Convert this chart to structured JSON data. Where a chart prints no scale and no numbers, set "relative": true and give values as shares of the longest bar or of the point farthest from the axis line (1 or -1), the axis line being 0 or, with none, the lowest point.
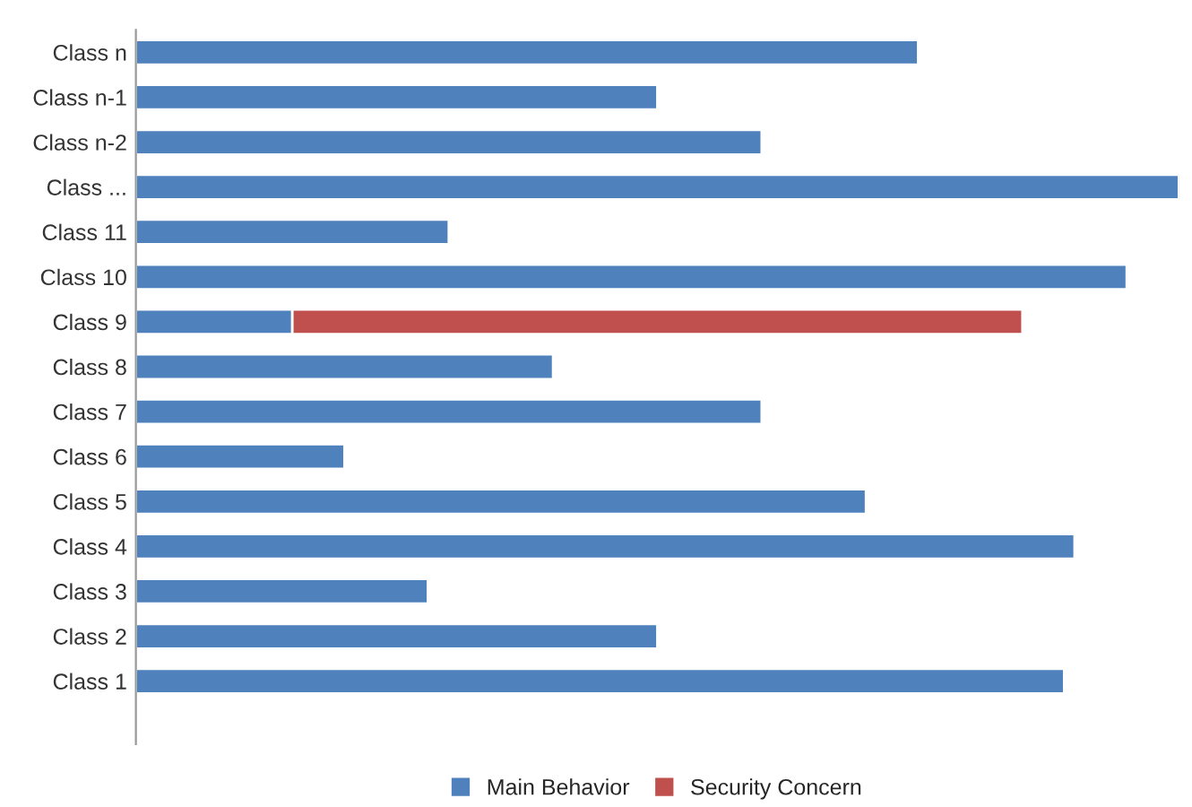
{
  "chart_data": {
    "type": "bar",
    "orientation": "horizontal",
    "stacked": true,
    "relative": true,
    "legend": "bottom",
    "grid": false,
    "categories": [
      "Class n",
      "Class n-1",
      "Class n-2",
      "Class ...",
      "Class 11",
      "Class 10",
      "Class 9",
      "Class 8",
      "Class 7",
      "Class 6",
      "Class 5",
      "Class 4",
      "Class 3",
      "Class 2",
      "Class 1"
    ],
    "series": [
      {
        "name": "Main Behavior",
        "color": "#4f81bd",
        "values": [
          0.75,
          0.5,
          0.6,
          1,
          0.3,
          0.95,
          0.15,
          0.4,
          0.6,
          0.2,
          0.7,
          0.9,
          0.28,
          0.5,
          0.89
        ]
      },
      {
        "name": "Security Concern",
        "color": "#c0504d",
        "values": [
          null,
          null,
          null,
          null,
          null,
          null,
          0.7,
          null,
          null,
          null,
          null,
          null,
          null,
          null,
          null
        ]
      }
    ]
  }
}
